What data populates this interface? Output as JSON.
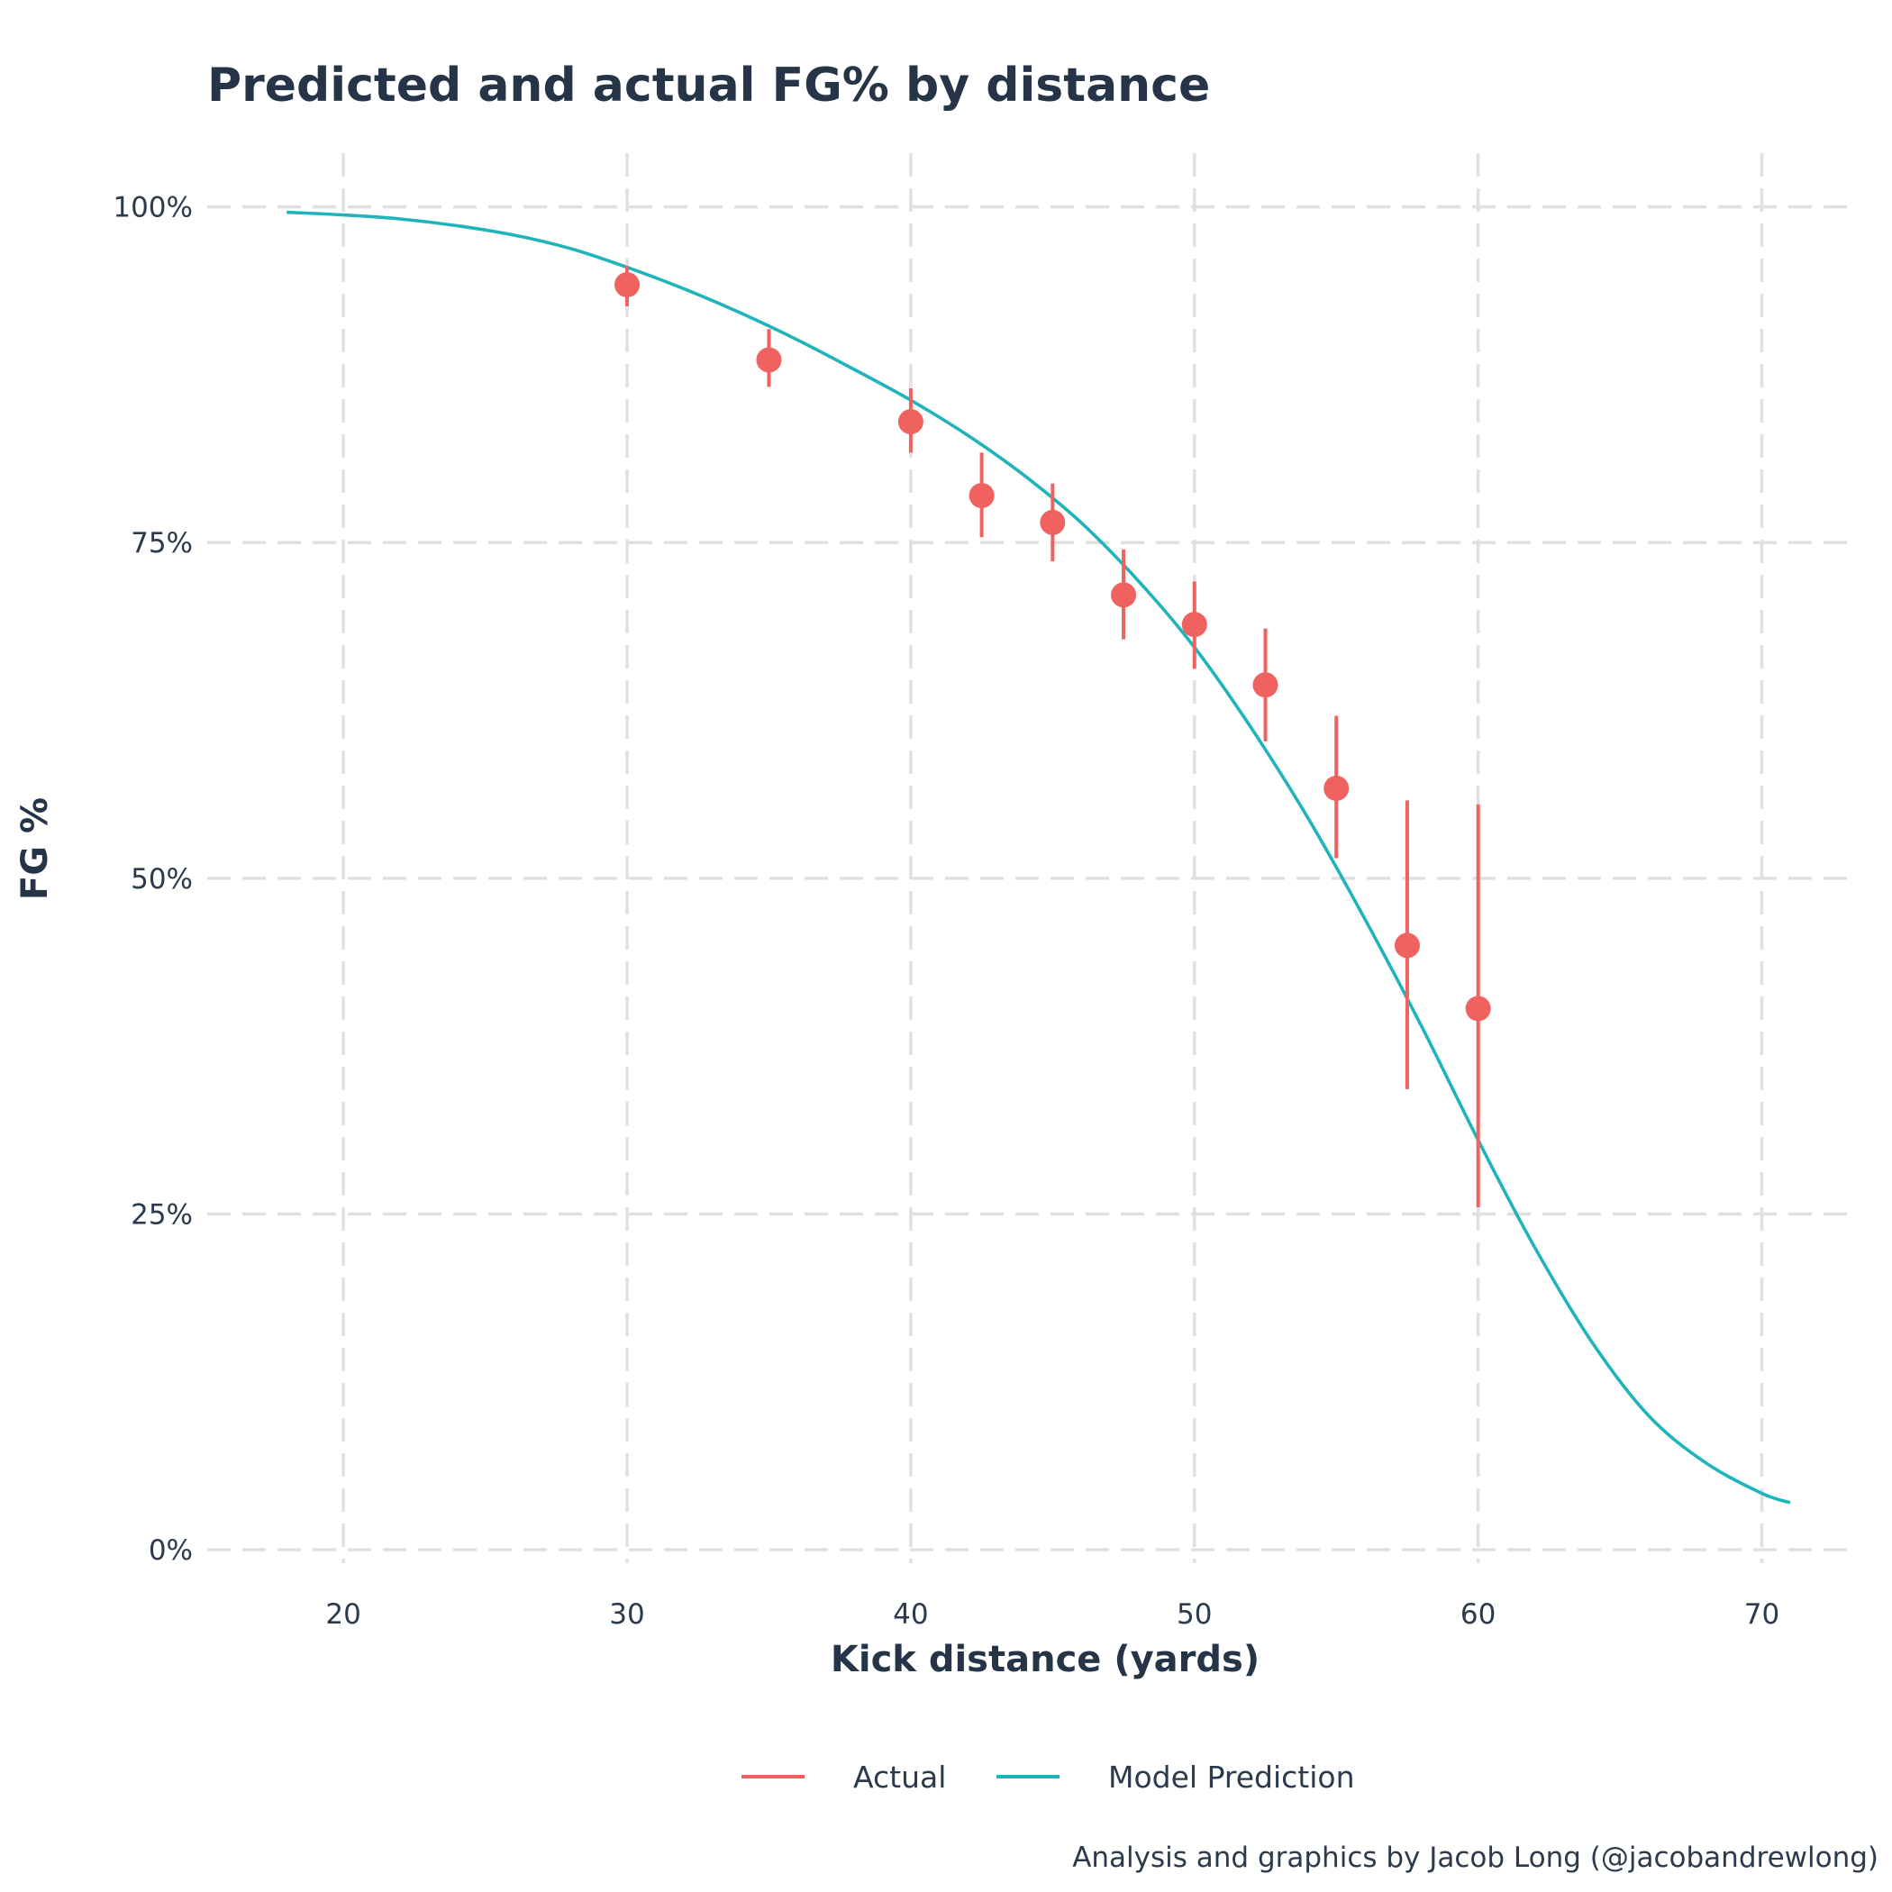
{
  "chart_data": {
    "type": "scatter",
    "title": "Predicted and actual FG% by distance",
    "xlabel": "Kick distance (yards)",
    "ylabel": "FG %",
    "xlim": [
      15.2,
      73.0
    ],
    "ylim": [
      -0.01,
      1.04
    ],
    "x_ticks": [
      20,
      30,
      40,
      50,
      60,
      70
    ],
    "x_tick_labels": [
      "20",
      "30",
      "40",
      "50",
      "60",
      "70"
    ],
    "y_ticks": [
      0,
      0.25,
      0.5,
      0.75,
      1.0
    ],
    "y_tick_labels": [
      "0%",
      "25%",
      "50%",
      "75%",
      "100%"
    ],
    "grid": true,
    "legend_position": "bottom",
    "series": [
      {
        "name": "Actual",
        "kind": "points-with-errorbars",
        "color": "#F0625F",
        "points": [
          {
            "x": 30.0,
            "y": 0.942,
            "low": 0.926,
            "high": 0.956
          },
          {
            "x": 35.0,
            "y": 0.886,
            "low": 0.866,
            "high": 0.909
          },
          {
            "x": 40.0,
            "y": 0.84,
            "low": 0.817,
            "high": 0.865
          },
          {
            "x": 42.5,
            "y": 0.785,
            "low": 0.754,
            "high": 0.817
          },
          {
            "x": 45.0,
            "y": 0.765,
            "low": 0.736,
            "high": 0.794
          },
          {
            "x": 47.5,
            "y": 0.711,
            "low": 0.678,
            "high": 0.745
          },
          {
            "x": 50.0,
            "y": 0.689,
            "low": 0.656,
            "high": 0.721
          },
          {
            "x": 52.5,
            "y": 0.644,
            "low": 0.602,
            "high": 0.686
          },
          {
            "x": 55.0,
            "y": 0.567,
            "low": 0.515,
            "high": 0.621
          },
          {
            "x": 57.5,
            "y": 0.45,
            "low": 0.343,
            "high": 0.558
          },
          {
            "x": 60.0,
            "y": 0.403,
            "low": 0.255,
            "high": 0.555
          }
        ]
      },
      {
        "name": "Model Prediction",
        "kind": "line",
        "color": "#1FB4BA",
        "x": [
          18,
          20,
          22,
          24,
          26,
          28,
          30,
          32,
          34,
          36,
          38,
          40,
          42,
          44,
          46,
          48,
          50,
          52,
          54,
          56,
          58,
          60,
          62,
          64,
          66,
          68,
          70,
          71
        ],
        "y": [
          0.996,
          0.994,
          0.991,
          0.986,
          0.979,
          0.969,
          0.955,
          0.939,
          0.921,
          0.901,
          0.879,
          0.856,
          0.83,
          0.8,
          0.765,
          0.722,
          0.672,
          0.612,
          0.545,
          0.47,
          0.39,
          0.305,
          0.225,
          0.155,
          0.1,
          0.065,
          0.042,
          0.035
        ]
      }
    ],
    "caption": "Analysis and graphics by Jacob Long (@jacobandrewlong)"
  }
}
